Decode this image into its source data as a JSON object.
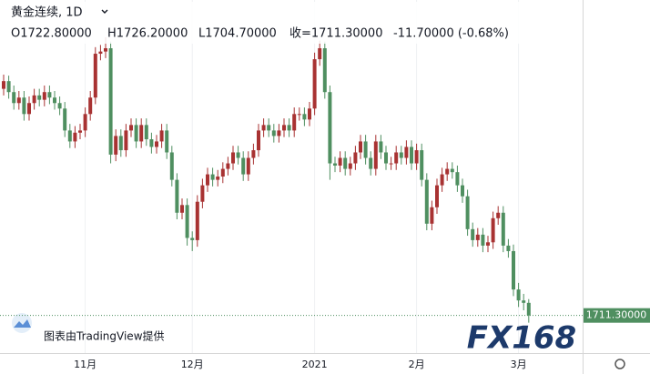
{
  "chart_data": {
    "type": "candlestick",
    "title": "黄金连续, 1D",
    "ohlc_labels": [
      "O1722.80000",
      "H1726.20000",
      "L1704.70000",
      "收=1711.30000",
      "-11.70000 (-0.68%)"
    ],
    "attribution": "图表由TradingView提供",
    "watermark": "FX168",
    "last_price": {
      "value": 1711.3,
      "label": "1711.30000"
    },
    "up_color": "#a83232",
    "down_color": "#4f8f60",
    "ylim": [
      1677,
      1999
    ],
    "categories": [
      null,
      null,
      null,
      null,
      null,
      null,
      null,
      null,
      null,
      null,
      null,
      null,
      null,
      null,
      null,
      null,
      "11月",
      null,
      null,
      null,
      null,
      null,
      null,
      null,
      null,
      null,
      null,
      null,
      null,
      null,
      null,
      null,
      null,
      null,
      null,
      null,
      null,
      "12月",
      null,
      null,
      null,
      null,
      null,
      null,
      null,
      null,
      null,
      null,
      null,
      null,
      null,
      null,
      null,
      null,
      null,
      null,
      null,
      null,
      null,
      null,
      null,
      "2021",
      null,
      null,
      null,
      null,
      null,
      null,
      null,
      null,
      null,
      null,
      null,
      null,
      null,
      null,
      null,
      null,
      null,
      null,
      null,
      "2月",
      null,
      null,
      null,
      null,
      null,
      null,
      null,
      null,
      null,
      null,
      null,
      null,
      null,
      null,
      null,
      null,
      null,
      null,
      null,
      "3月",
      null,
      null
    ],
    "series": [
      {
        "name": "open",
        "values": [
          1918,
          1925,
          1915,
          1905,
          1910,
          1895,
          1905,
          1912,
          1908,
          1915,
          1910,
          1905,
          1900,
          1880,
          1870,
          1878,
          1880,
          1895,
          1910,
          1950,
          1952,
          1955,
          1858,
          1875,
          1862,
          1880,
          1885,
          1870,
          1885,
          1872,
          1865,
          1870,
          1880,
          1860,
          1835,
          1805,
          1812,
          1782,
          1780,
          1815,
          1830,
          1840,
          1835,
          1838,
          1845,
          1850,
          1860,
          1855,
          1840,
          1855,
          1862,
          1880,
          1885,
          1880,
          1875,
          1880,
          1885,
          1880,
          1895,
          1895,
          1890,
          1900,
          1945,
          1955,
          1915,
          1850,
          1848,
          1855,
          1845,
          1850,
          1860,
          1870,
          1855,
          1845,
          1870,
          1860,
          1850,
          1850,
          1860,
          1855,
          1865,
          1850,
          1862,
          1835,
          1795,
          1810,
          1830,
          1840,
          1845,
          1842,
          1830,
          1820,
          1790,
          1780,
          1785,
          1775,
          1778,
          1800,
          1805,
          1775,
          1770,
          1735,
          1725,
          1722.8
        ]
      },
      {
        "name": "high",
        "values": [
          1931,
          1930,
          1921,
          1916,
          1916,
          1911,
          1918,
          1918,
          1921,
          1921,
          1916,
          1911,
          1906,
          1886,
          1884,
          1886,
          1901,
          1916,
          1956,
          1958,
          1965,
          1961,
          1881,
          1881,
          1886,
          1891,
          1891,
          1891,
          1891,
          1878,
          1876,
          1886,
          1886,
          1866,
          1841,
          1818,
          1818,
          1788,
          1821,
          1836,
          1846,
          1846,
          1844,
          1851,
          1856,
          1866,
          1866,
          1861,
          1861,
          1868,
          1886,
          1891,
          1891,
          1886,
          1886,
          1891,
          1891,
          1901,
          1901,
          1901,
          1906,
          1951,
          1962,
          1961,
          1921,
          1856,
          1861,
          1861,
          1856,
          1866,
          1876,
          1876,
          1861,
          1876,
          1876,
          1866,
          1856,
          1866,
          1866,
          1871,
          1871,
          1868,
          1868,
          1841,
          1816,
          1836,
          1846,
          1851,
          1851,
          1848,
          1836,
          1826,
          1796,
          1791,
          1791,
          1784,
          1806,
          1811,
          1811,
          1781,
          1776,
          1741,
          1731,
          1726.2
        ]
      },
      {
        "name": "low",
        "values": [
          1912,
          1909,
          1899,
          1899,
          1889,
          1889,
          1899,
          1902,
          1902,
          1904,
          1899,
          1894,
          1874,
          1864,
          1864,
          1872,
          1874,
          1889,
          1904,
          1944,
          1946,
          1850,
          1852,
          1856,
          1856,
          1874,
          1864,
          1864,
          1866,
          1859,
          1859,
          1864,
          1854,
          1829,
          1799,
          1799,
          1775,
          1770,
          1774,
          1809,
          1824,
          1829,
          1829,
          1832,
          1839,
          1844,
          1849,
          1834,
          1834,
          1849,
          1856,
          1874,
          1874,
          1869,
          1869,
          1874,
          1874,
          1874,
          1889,
          1884,
          1884,
          1894,
          1939,
          1909,
          1835,
          1842,
          1842,
          1839,
          1839,
          1844,
          1854,
          1849,
          1839,
          1839,
          1854,
          1844,
          1844,
          1844,
          1849,
          1849,
          1844,
          1844,
          1829,
          1789,
          1789,
          1804,
          1824,
          1834,
          1836,
          1824,
          1814,
          1784,
          1774,
          1774,
          1769,
          1769,
          1772,
          1794,
          1769,
          1764,
          1729,
          1719,
          1716,
          1704.7
        ]
      },
      {
        "name": "close",
        "values": [
          1925,
          1915,
          1905,
          1910,
          1895,
          1905,
          1912,
          1908,
          1915,
          1910,
          1905,
          1900,
          1880,
          1870,
          1878,
          1880,
          1895,
          1910,
          1950,
          1952,
          1955,
          1858,
          1875,
          1862,
          1880,
          1885,
          1870,
          1885,
          1872,
          1865,
          1870,
          1880,
          1860,
          1835,
          1805,
          1812,
          1782,
          1780,
          1815,
          1830,
          1840,
          1835,
          1838,
          1845,
          1850,
          1860,
          1855,
          1840,
          1855,
          1862,
          1880,
          1885,
          1880,
          1875,
          1880,
          1885,
          1880,
          1895,
          1895,
          1890,
          1900,
          1945,
          1955,
          1915,
          1850,
          1848,
          1855,
          1845,
          1850,
          1860,
          1870,
          1855,
          1845,
          1870,
          1860,
          1850,
          1850,
          1860,
          1855,
          1865,
          1850,
          1862,
          1835,
          1795,
          1810,
          1830,
          1840,
          1845,
          1842,
          1830,
          1820,
          1790,
          1780,
          1785,
          1775,
          1778,
          1800,
          1805,
          1775,
          1770,
          1735,
          1725,
          1722.8,
          1711.3
        ]
      }
    ]
  }
}
